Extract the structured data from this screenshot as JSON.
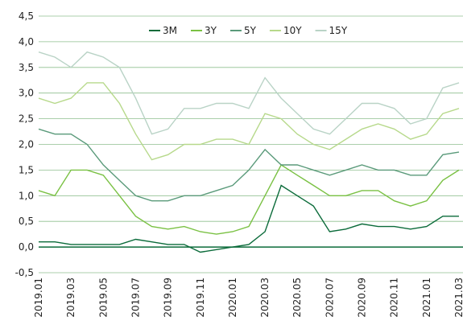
{
  "chart_data": {
    "type": "line",
    "categories": [
      "2019.01",
      null,
      "2019.03",
      null,
      "2019.05",
      null,
      "2019.07",
      null,
      "2019.09",
      null,
      "2019.11",
      null,
      "2020.01",
      null,
      "2020.03",
      null,
      "2020.05",
      null,
      "2020.07",
      null,
      "2020.09",
      null,
      "2020.11",
      null,
      "2021.01",
      null,
      "2021.03"
    ],
    "series": [
      {
        "name": "3M",
        "color": "#0b6b3a",
        "values": [
          0.1,
          0.1,
          0.05,
          0.05,
          0.05,
          0.05,
          0.15,
          0.1,
          0.05,
          0.05,
          -0.1,
          -0.05,
          0,
          0.05,
          0.3,
          1.2,
          1.0,
          0.8,
          0.3,
          0.35,
          0.45,
          0.4,
          0.4,
          0.35,
          0.4,
          0.6,
          0.6
        ]
      },
      {
        "name": "3Y",
        "color": "#7ac143",
        "values": [
          1.1,
          1.0,
          1.5,
          1.5,
          1.4,
          1.0,
          0.6,
          0.4,
          0.35,
          0.4,
          0.3,
          0.25,
          0.3,
          0.4,
          1.0,
          1.6,
          1.4,
          1.2,
          1.0,
          1.0,
          1.1,
          1.1,
          0.9,
          0.8,
          0.9,
          1.3,
          1.5
        ]
      },
      {
        "name": "5Y",
        "color": "#5a9a7a",
        "values": [
          2.3,
          2.2,
          2.2,
          2.0,
          1.6,
          1.3,
          1.0,
          0.9,
          0.9,
          1.0,
          1.0,
          1.1,
          1.2,
          1.5,
          1.9,
          1.6,
          1.6,
          1.5,
          1.4,
          1.5,
          1.6,
          1.5,
          1.5,
          1.4,
          1.4,
          1.8,
          1.85
        ]
      },
      {
        "name": "10Y",
        "color": "#b7d98b",
        "values": [
          2.9,
          2.8,
          2.9,
          3.2,
          3.2,
          2.8,
          2.2,
          1.7,
          1.8,
          2.0,
          2.0,
          2.1,
          2.1,
          2.0,
          2.6,
          2.5,
          2.2,
          2.0,
          1.9,
          2.1,
          2.3,
          2.4,
          2.3,
          2.1,
          2.2,
          2.6,
          2.7
        ]
      },
      {
        "name": "15Y",
        "color": "#b9d3c6",
        "values": [
          3.8,
          3.7,
          3.5,
          3.8,
          3.7,
          3.5,
          2.9,
          2.2,
          2.3,
          2.7,
          2.7,
          2.8,
          2.8,
          2.7,
          3.3,
          2.9,
          2.6,
          2.3,
          2.2,
          2.5,
          2.8,
          2.8,
          2.7,
          2.4,
          2.5,
          3.1,
          3.2
        ]
      }
    ],
    "ylim": [
      -0.5,
      4.5
    ],
    "yticks": [
      {
        "value": -0.5,
        "label": "-0,5"
      },
      {
        "value": 0,
        "label": "0,0"
      },
      {
        "value": 0.5,
        "label": "0,5"
      },
      {
        "value": 1,
        "label": "1,0"
      },
      {
        "value": 1.5,
        "label": "1,5"
      },
      {
        "value": 2,
        "label": "2,0"
      },
      {
        "value": 2.5,
        "label": "2,5"
      },
      {
        "value": 3,
        "label": "3,0"
      },
      {
        "value": 3.5,
        "label": "3,5"
      },
      {
        "value": 4,
        "label": "4,0"
      },
      {
        "value": 4.5,
        "label": "4,5"
      }
    ],
    "grid": true,
    "legend": "top"
  }
}
